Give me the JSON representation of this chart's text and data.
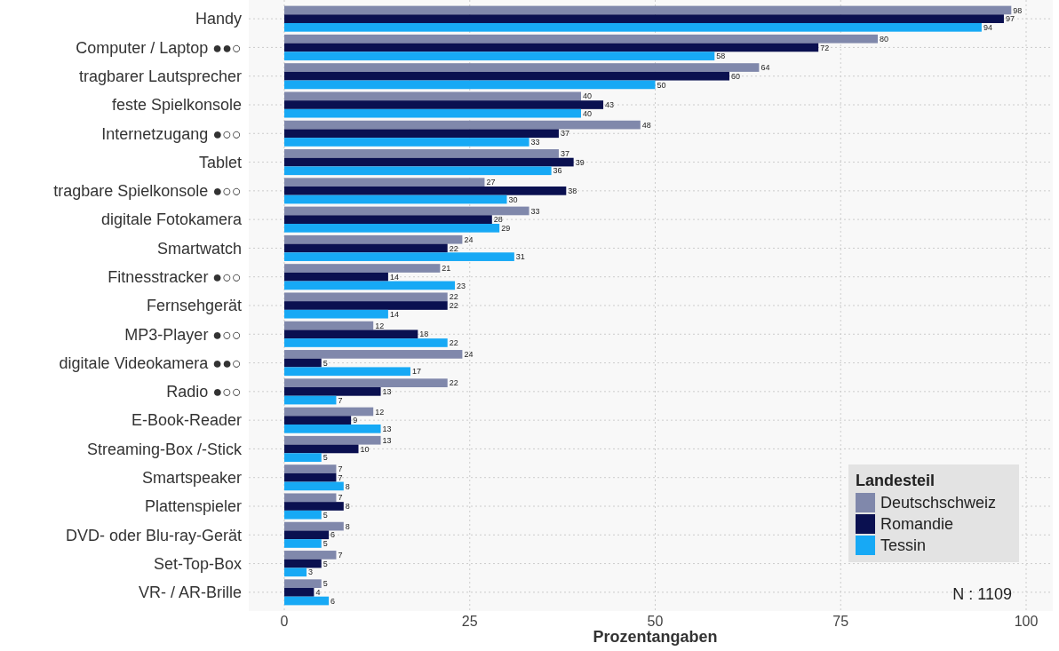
{
  "chart_data": {
    "type": "bar",
    "orientation": "horizontal",
    "xlabel": "Prozentangaben",
    "legend_title": "Landesteil",
    "legend": "bottom right",
    "grid": true,
    "data_labels": true,
    "categories": [
      "Handy",
      "Computer / Laptop ●●○",
      "tragbarer Lautsprecher",
      "feste Spielkonsole",
      "Internetzugang ●○○",
      "Tablet",
      "tragbare Spielkonsole ●○○",
      "digitale Fotokamera",
      "Smartwatch",
      "Fitnesstracker ●○○",
      "Fernsehgerät",
      "MP3-Player ●○○",
      "digitale Videokamera ●●○",
      "Radio ●○○",
      "E-Book-Reader",
      "Streaming-Box /-Stick",
      "Smartspeaker",
      "Plattenspieler",
      "DVD- oder Blu-ray-Gerät",
      "Set-Top-Box",
      "VR- / AR-Brille"
    ],
    "series": [
      {
        "name": "Deutschschweiz",
        "color": "#8088ab",
        "values": [
          98,
          80,
          64,
          40,
          48,
          37,
          27,
          33,
          24,
          21,
          22,
          12,
          24,
          22,
          12,
          13,
          7,
          7,
          8,
          7,
          5
        ]
      },
      {
        "name": "Romandie",
        "color": "#0a1050",
        "values": [
          97,
          72,
          60,
          43,
          37,
          39,
          38,
          28,
          22,
          14,
          22,
          18,
          5,
          13,
          9,
          10,
          7,
          8,
          6,
          5,
          4
        ]
      },
      {
        "name": "Tessin",
        "color": "#17a9f5",
        "values": [
          94,
          58,
          50,
          40,
          33,
          36,
          30,
          29,
          31,
          23,
          14,
          22,
          17,
          7,
          13,
          5,
          8,
          5,
          5,
          3,
          6
        ]
      }
    ],
    "xlim": [
      0,
      100
    ],
    "xticks": [
      0,
      25,
      50,
      75,
      100
    ],
    "annotations": [
      "N : 1109"
    ]
  }
}
